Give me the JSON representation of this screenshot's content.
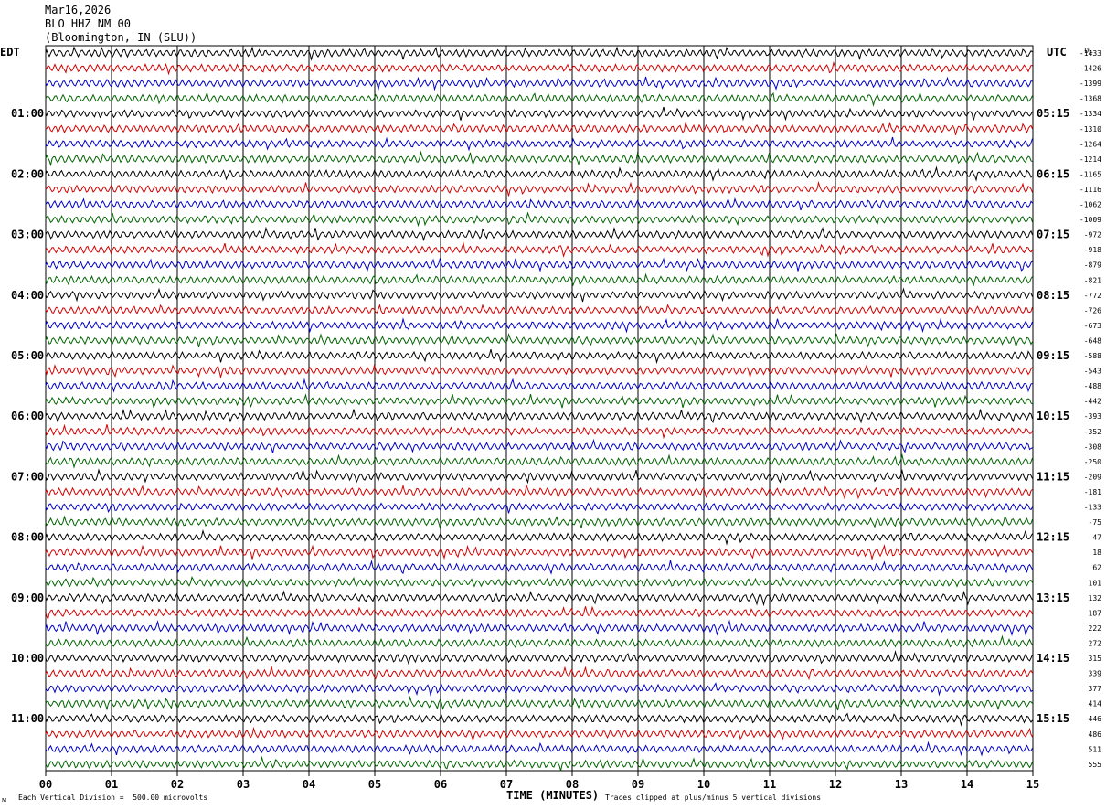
{
  "header": {
    "date": "Mar16,2026",
    "station": "BLO HHZ NM 00",
    "location": "(Bloomington, IN (SLU))"
  },
  "left_axis_title": "EDT",
  "right_axis_title": "UTC",
  "dc_label": "DC",
  "footer": {
    "scale": "Each Vertical Division =  500.00 microvolts",
    "time_label": "TIME (MINUTES)",
    "clip_note": "Traces clipped at plus/minus 5 vertical divisions",
    "corner_mark": "ᴍ"
  },
  "colors": {
    "trace_cycle": [
      "#000000",
      "#d40000",
      "#0000c8",
      "#006400"
    ],
    "grid": "#000000"
  },
  "chart_data": {
    "type": "line",
    "title": "",
    "xlabel": "TIME (MINUTES)",
    "xlim": [
      0,
      15
    ],
    "x_ticks": [
      "00",
      "01",
      "02",
      "03",
      "04",
      "05",
      "06",
      "07",
      "08",
      "09",
      "10",
      "11",
      "12",
      "13",
      "14",
      "15"
    ],
    "traces_per_hour": 4,
    "trace_count": 48,
    "left_hour_labels": [
      "01:00",
      "02:00",
      "03:00",
      "04:00",
      "05:00",
      "06:00",
      "07:00",
      "08:00",
      "09:00",
      "10:00",
      "11:00"
    ],
    "right_hour_labels": [
      "05:15",
      "06:15",
      "07:15",
      "08:15",
      "09:15",
      "10:15",
      "11:15",
      "12:15",
      "13:15",
      "14:15",
      "15:15"
    ],
    "dc_offsets": [
      "-1433",
      "-1426",
      "-1399",
      "-1368",
      "-1334",
      "-1310",
      "-1264",
      "-1214",
      "-1165",
      "-1116",
      "-1062",
      "-1009",
      "-972",
      "-918",
      "-879",
      "-821",
      "-772",
      "-726",
      "-673",
      "-648",
      "-588",
      "-543",
      "-488",
      "-442",
      "-393",
      "-352",
      "-308",
      "-250",
      "-209",
      "-181",
      "-133",
      "-75",
      "-47",
      "18",
      "62",
      "101",
      "132",
      "187",
      "222",
      "272",
      "315",
      "339",
      "377",
      "414",
      "446",
      "486",
      "511",
      "555"
    ],
    "vertical_division_microvolts": 500.0,
    "clip_divisions": 5
  }
}
